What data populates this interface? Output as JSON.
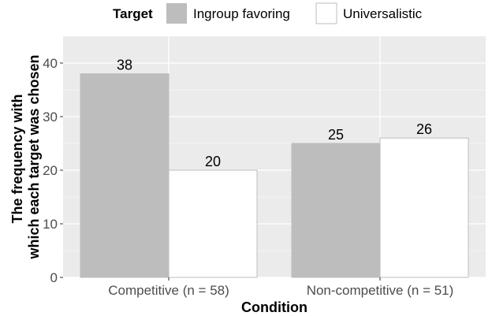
{
  "chart_data": {
    "type": "bar",
    "categories": [
      "Competitive (n = 58)",
      "Non-competitive (n = 51)"
    ],
    "series": [
      {
        "name": "Ingroup favoring",
        "values": [
          38,
          25
        ],
        "color": "#bdbdbd"
      },
      {
        "name": "Universalistic",
        "values": [
          20,
          26
        ],
        "color": "#ffffff"
      }
    ],
    "xlabel": "Condition",
    "ylabel_lines": [
      "The frequency with",
      "which each target was chosen"
    ],
    "ylim": [
      0,
      45
    ],
    "yticks": [
      0,
      10,
      20,
      30,
      40
    ],
    "legend": {
      "title": "Target",
      "position": "top"
    },
    "grid": true,
    "colors": {
      "panel_background": "#ebebeb",
      "grid": "#ffffff",
      "bar_border": "#bdbdbd"
    }
  }
}
